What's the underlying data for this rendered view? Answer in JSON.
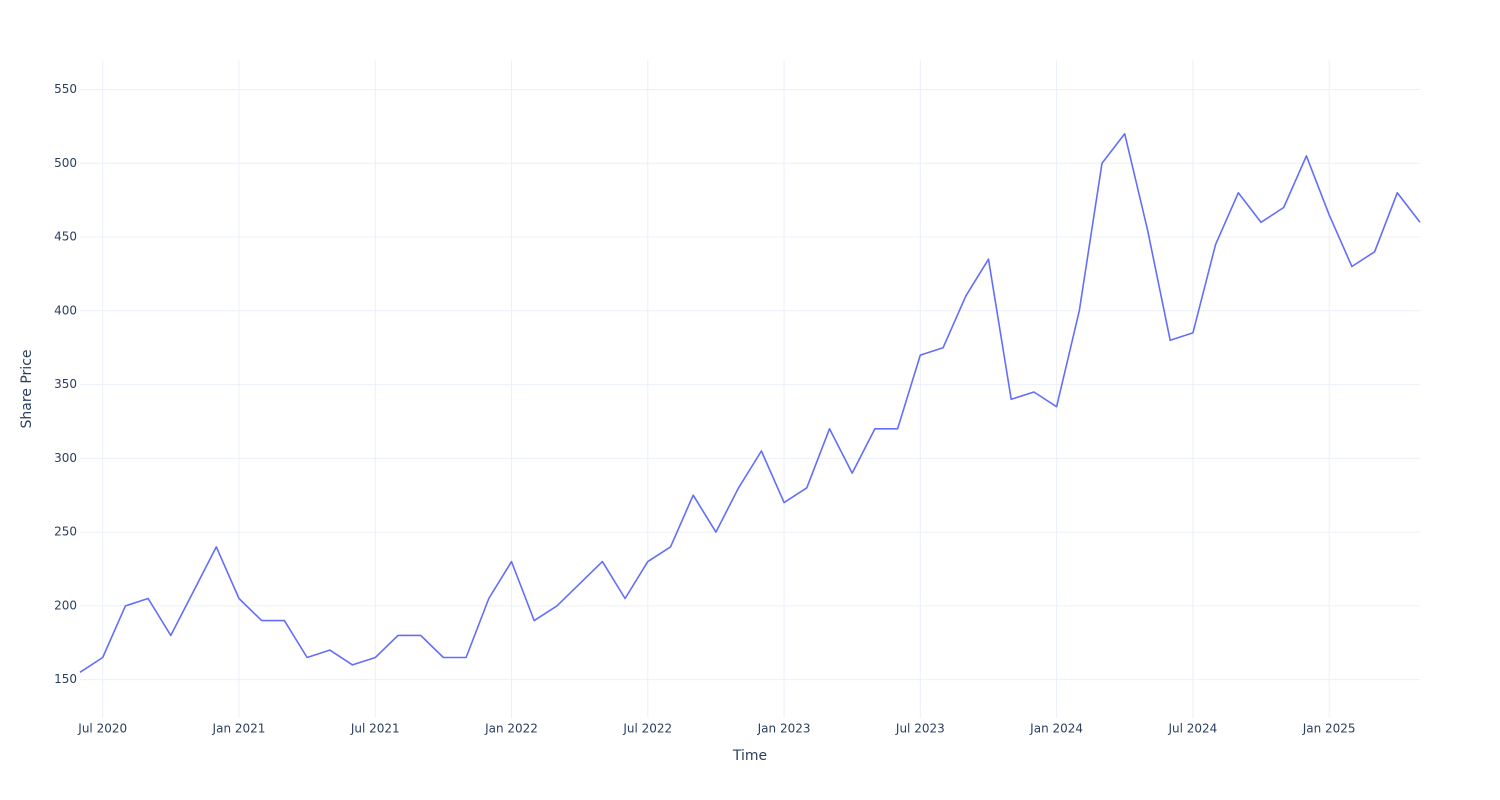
{
  "chart_data": {
    "type": "line",
    "x_label": "Time",
    "y_label": "Share Price",
    "x": [
      "2020-06",
      "2020-07",
      "2020-08",
      "2020-09",
      "2020-10",
      "2020-11",
      "2020-12",
      "2021-01",
      "2021-02",
      "2021-03",
      "2021-04",
      "2021-05",
      "2021-06",
      "2021-07",
      "2021-08",
      "2021-09",
      "2021-10",
      "2021-11",
      "2021-12",
      "2022-01",
      "2022-02",
      "2022-03",
      "2022-04",
      "2022-05",
      "2022-06",
      "2022-07",
      "2022-08",
      "2022-09",
      "2022-10",
      "2022-11",
      "2022-12",
      "2023-01",
      "2023-02",
      "2023-03",
      "2023-04",
      "2023-05",
      "2023-06",
      "2023-07",
      "2023-08",
      "2023-09",
      "2023-10",
      "2023-11",
      "2023-12",
      "2024-01",
      "2024-02",
      "2024-03",
      "2024-04",
      "2024-05",
      "2024-06",
      "2024-07",
      "2024-08",
      "2024-09",
      "2024-10",
      "2024-11",
      "2024-12",
      "2025-01",
      "2025-02",
      "2025-03",
      "2025-04",
      "2025-05"
    ],
    "series": [
      {
        "name": "Share Price",
        "color": "#636efa",
        "values": [
          155,
          165,
          200,
          205,
          180,
          210,
          240,
          205,
          190,
          190,
          165,
          170,
          160,
          165,
          180,
          180,
          165,
          165,
          205,
          230,
          190,
          200,
          215,
          230,
          205,
          230,
          240,
          275,
          250,
          280,
          305,
          270,
          280,
          320,
          290,
          320,
          320,
          370,
          375,
          410,
          435,
          340,
          345,
          335,
          400,
          500,
          520,
          455,
          380,
          385,
          445,
          480,
          460,
          470,
          505,
          465,
          430,
          440,
          480,
          460
        ]
      }
    ],
    "xlim": [
      "2020-06",
      "2025-05"
    ],
    "xticks": [
      {
        "value": "2020-07",
        "label": "Jul 2020"
      },
      {
        "value": "2021-01",
        "label": "Jan 2021"
      },
      {
        "value": "2021-07",
        "label": "Jul 2021"
      },
      {
        "value": "2022-01",
        "label": "Jan 2022"
      },
      {
        "value": "2022-07",
        "label": "Jul 2022"
      },
      {
        "value": "2023-01",
        "label": "Jan 2023"
      },
      {
        "value": "2023-07",
        "label": "Jul 2023"
      },
      {
        "value": "2024-01",
        "label": "Jan 2024"
      },
      {
        "value": "2024-07",
        "label": "Jul 2024"
      },
      {
        "value": "2025-01",
        "label": "Jan 2025"
      }
    ],
    "ylim": [
      124,
      570
    ],
    "yticks": [
      150,
      200,
      250,
      300,
      350,
      400,
      450,
      500,
      550
    ],
    "grid": true
  }
}
